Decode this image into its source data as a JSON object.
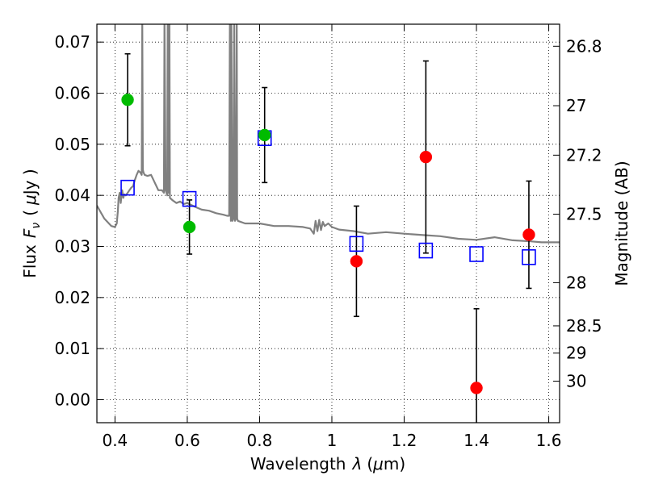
{
  "chart_data": {
    "type": "scatter",
    "title": "",
    "xlabel": "Wavelength",
    "xlabel_symbol": "λ",
    "xlabel_unit_open": "(",
    "xlabel_unit_mu": "μ",
    "xlabel_unit_rest": "m)",
    "ylabel": "Flux",
    "ylabel_symbol": "F",
    "ylabel_subscript": "ν",
    "ylabel_unit_open": "(",
    "ylabel_unit_mu": "μ",
    "ylabel_unit_rest": "Jy )",
    "y2label": "Magnitude (AB)",
    "xlim": [
      0.35,
      1.63
    ],
    "ylim": [
      -0.0045,
      0.0735
    ],
    "grid": true,
    "x_ticks": [
      0.4,
      0.6,
      0.8,
      1.0,
      1.2,
      1.4,
      1.6
    ],
    "x_tick_labels": [
      "0.4",
      "0.6",
      "0.8",
      "1",
      "1.2",
      "1.4",
      "1.6"
    ],
    "y_ticks": [
      0.0,
      0.01,
      0.02,
      0.03,
      0.04,
      0.05,
      0.06,
      0.07
    ],
    "y_tick_labels": [
      "0.00",
      "0.01",
      "0.02",
      "0.03",
      "0.04",
      "0.05",
      "0.06",
      "0.07"
    ],
    "y2_ticks": [
      26.8,
      27,
      27.2,
      27.5,
      28,
      28.5,
      29,
      30
    ],
    "y2_tick_labels": [
      "26.8",
      "27",
      "27.2",
      "27.5",
      "28",
      "28.5",
      "29",
      "30"
    ],
    "ab_zero_point_uJy": 3631000000,
    "series": [
      {
        "name": "green-detections",
        "color": "#00bb00",
        "marker": "circle",
        "x": [
          0.435,
          0.606,
          0.814
        ],
        "y": [
          0.0587,
          0.0338,
          0.0518
        ],
        "yerr": [
          0.009,
          0.0053,
          0.0093
        ]
      },
      {
        "name": "red-detections",
        "color": "#ff0000",
        "marker": "circle",
        "x": [
          1.068,
          1.26,
          1.4,
          1.545
        ],
        "y": [
          0.0271,
          0.0475,
          0.0023,
          0.0323
        ],
        "yerr": [
          0.0108,
          0.0188,
          0.0155,
          0.0105
        ]
      },
      {
        "name": "model-photometry",
        "color": "#0000ff",
        "marker": "square",
        "x": [
          0.435,
          0.606,
          0.814,
          1.068,
          1.26,
          1.4,
          1.545
        ],
        "y": [
          0.0415,
          0.0393,
          0.0512,
          0.0305,
          0.0292,
          0.0285,
          0.0279
        ]
      },
      {
        "name": "model-sed",
        "color": "#808080",
        "marker": "line",
        "x": [
          0.35,
          0.37,
          0.39,
          0.4,
          0.405,
          0.408,
          0.41,
          0.413,
          0.416,
          0.418,
          0.42,
          0.423,
          0.426,
          0.43,
          0.435,
          0.44,
          0.445,
          0.45,
          0.455,
          0.46,
          0.465,
          0.47,
          0.474,
          0.4755,
          0.477,
          0.479,
          0.482,
          0.49,
          0.5,
          0.51,
          0.52,
          0.53,
          0.5355,
          0.537,
          0.54,
          0.5445,
          0.546,
          0.548,
          0.5505,
          0.552,
          0.56,
          0.57,
          0.58,
          0.59,
          0.6,
          0.62,
          0.64,
          0.66,
          0.68,
          0.7,
          0.71,
          0.716,
          0.718,
          0.7205,
          0.722,
          0.725,
          0.728,
          0.73,
          0.732,
          0.735,
          0.737,
          0.738,
          0.74,
          0.76,
          0.8,
          0.84,
          0.88,
          0.92,
          0.94,
          0.95,
          0.955,
          0.96,
          0.965,
          0.97,
          0.975,
          0.98,
          0.99,
          1.0,
          1.02,
          1.06,
          1.1,
          1.15,
          1.2,
          1.26,
          1.3,
          1.35,
          1.4,
          1.45,
          1.5,
          1.55,
          1.58,
          1.6,
          1.63
        ],
        "y": [
          0.038,
          0.0355,
          0.034,
          0.0338,
          0.0345,
          0.037,
          0.0395,
          0.0405,
          0.0385,
          0.0398,
          0.041,
          0.0395,
          0.0402,
          0.04,
          0.0405,
          0.041,
          0.0415,
          0.0418,
          0.043,
          0.044,
          0.0448,
          0.0445,
          0.044,
          0.075,
          0.045,
          0.0445,
          0.044,
          0.0438,
          0.044,
          0.0425,
          0.041,
          0.041,
          0.0405,
          0.075,
          0.041,
          0.04,
          0.075,
          0.0405,
          0.075,
          0.0395,
          0.039,
          0.0385,
          0.0388,
          0.0383,
          0.0385,
          0.0378,
          0.0372,
          0.037,
          0.0365,
          0.0362,
          0.036,
          0.036,
          0.075,
          0.035,
          0.075,
          0.035,
          0.0355,
          0.075,
          0.035,
          0.0355,
          0.075,
          0.0355,
          0.035,
          0.0345,
          0.0345,
          0.034,
          0.034,
          0.0338,
          0.0335,
          0.0325,
          0.035,
          0.033,
          0.0352,
          0.0332,
          0.0348,
          0.034,
          0.0345,
          0.0338,
          0.0333,
          0.033,
          0.0325,
          0.0328,
          0.0325,
          0.0322,
          0.032,
          0.0315,
          0.0313,
          0.0318,
          0.0312,
          0.031,
          0.0308,
          0.0308,
          0.0308
        ]
      }
    ]
  }
}
